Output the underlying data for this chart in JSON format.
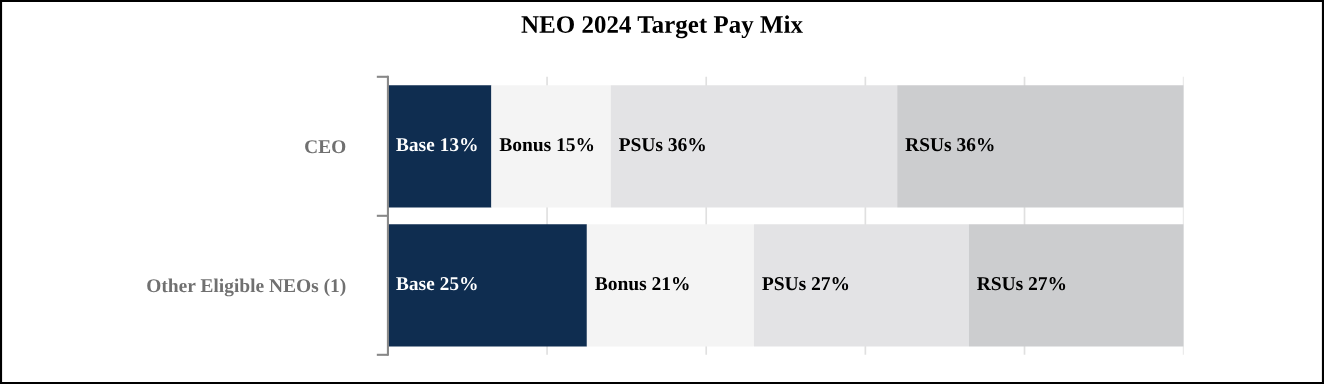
{
  "chart_data": {
    "type": "bar",
    "orientation": "horizontal",
    "stacked": true,
    "title": "NEO 2024 Target Pay Mix",
    "categories": [
      "CEO",
      "Other Eligible NEOs (1)"
    ],
    "series": [
      {
        "color": "#0f2d50",
        "values": [
          13,
          25
        ],
        "value_labels": [
          "Base 13%",
          "Base 25%"
        ]
      },
      {
        "color": "#f4f4f4",
        "values": [
          15,
          21
        ],
        "value_labels": [
          "Bonus 15%",
          "Bonus 21%"
        ]
      },
      {
        "color": "#e3e3e5",
        "values": [
          36,
          27
        ],
        "value_labels": [
          "PSUs 36%",
          "PSUs 27%"
        ]
      },
      {
        "color": "#cccdcf",
        "values": [
          36,
          27
        ],
        "value_labels": [
          "RSUs 36%",
          "RSUs 27%"
        ]
      }
    ],
    "xlim": [
      0,
      100
    ],
    "xticks": [
      {
        "value": 0,
        "label": null
      },
      {
        "value": 20,
        "label": null
      },
      {
        "value": 40,
        "label": null
      },
      {
        "value": 60,
        "label": null
      },
      {
        "value": 80,
        "label": null
      },
      {
        "value": 100,
        "label": null
      }
    ],
    "grid": "x",
    "legend": false,
    "tick_labels": "y"
  }
}
